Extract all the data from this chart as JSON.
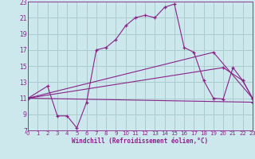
{
  "xlabel": "Windchill (Refroidissement éolien,°C)",
  "bg_color": "#cde8ec",
  "grid_color": "#aacccc",
  "line_color": "#882288",
  "xlim": [
    0,
    23
  ],
  "ylim": [
    7,
    23
  ],
  "xticks": [
    0,
    1,
    2,
    3,
    4,
    5,
    6,
    7,
    8,
    9,
    10,
    11,
    12,
    13,
    14,
    15,
    16,
    17,
    18,
    19,
    20,
    21,
    22,
    23
  ],
  "yticks": [
    7,
    9,
    11,
    13,
    15,
    17,
    19,
    21,
    23
  ],
  "lines": [
    {
      "x": [
        0,
        2,
        3,
        4,
        5,
        6,
        7,
        8,
        9,
        10,
        11,
        12,
        13,
        14,
        15,
        16,
        17,
        18,
        19,
        20,
        21,
        22,
        23
      ],
      "y": [
        11,
        12.5,
        8.8,
        8.8,
        7.3,
        10.5,
        17.0,
        17.3,
        18.3,
        20.0,
        21.0,
        21.3,
        21.0,
        22.3,
        22.7,
        17.3,
        16.7,
        13.2,
        11.0,
        10.9,
        14.8,
        13.2,
        11.0
      ]
    },
    {
      "x": [
        0,
        20,
        22,
        23
      ],
      "y": [
        11,
        14.8,
        13.2,
        11.0
      ]
    },
    {
      "x": [
        0,
        19,
        23
      ],
      "y": [
        11,
        16.7,
        11.0
      ]
    },
    {
      "x": [
        0,
        23
      ],
      "y": [
        11,
        10.5
      ]
    }
  ]
}
